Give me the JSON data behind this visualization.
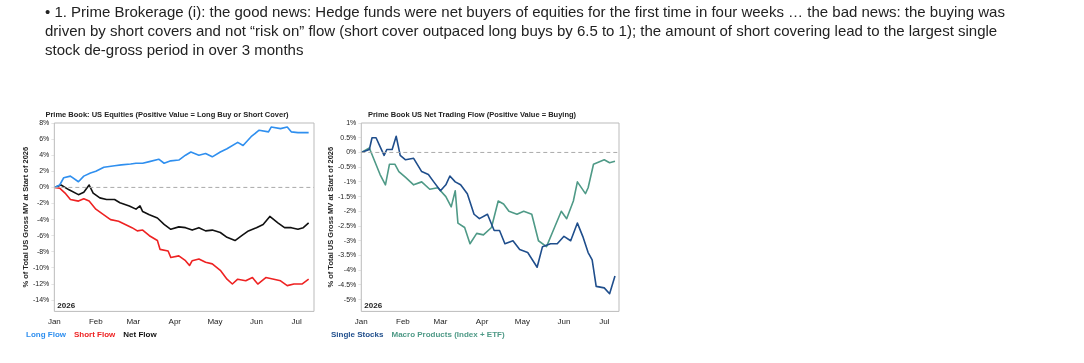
{
  "chart_data": [
    {
      "type": "line",
      "title": "Prime Book: US Equities (Positive Value = Long Buy or Short Cover)",
      "ylabel": "% of Total US Gross MV at Start of 2026",
      "annotations": [
        "• 1. Prime Brokerage (i): the good news: Hedge funds were net buyers of equities for the first time in four weeks … the bad news: the buying was driven by short covers and not “risk on” flow (short cover outpaced long buys by 6.5 to 1); the amount of short covering lead to the largest single stock de-gross period in over 3 months",
        "2026"
      ],
      "xlim": [
        "2026-01-01",
        "2026-07-14"
      ],
      "xticks": [
        {
          "value": "2026-01-01",
          "label": "Jan"
        },
        {
          "value": "2026-02-01",
          "label": "Feb"
        },
        {
          "value": "2026-03-01",
          "label": "Mar"
        },
        {
          "value": "2026-04-01",
          "label": "Apr"
        },
        {
          "value": "2026-05-01",
          "label": "May"
        },
        {
          "value": "2026-06-01",
          "label": "Jun"
        },
        {
          "value": "2026-07-01",
          "label": "Jul"
        }
      ],
      "ylim": [
        -15.4,
        8
      ],
      "yticks": [
        {
          "value": 8,
          "label": "8%"
        },
        {
          "value": 6,
          "label": "6%"
        },
        {
          "value": 4,
          "label": "4%"
        },
        {
          "value": 2,
          "label": "2%"
        },
        {
          "value": 0,
          "label": "0%"
        },
        {
          "value": -2,
          "label": "-2%"
        },
        {
          "value": -4,
          "label": "-4%"
        },
        {
          "value": -6,
          "label": "-6%"
        },
        {
          "value": -8,
          "label": "-8%"
        },
        {
          "value": -10,
          "label": "-10%"
        },
        {
          "value": -12,
          "label": "-12%"
        },
        {
          "value": -14,
          "label": "-14%"
        }
      ],
      "grid": false,
      "legend": "bottom left",
      "marker": "none",
      "line_style": "solid",
      "ref_lines": [
        {
          "axis": "y",
          "value": 0,
          "label": null,
          "color": "#aaaaaa",
          "line_style": "dashed"
        }
      ],
      "series": [
        {
          "name": "Long Flow",
          "color": "#2f8fef",
          "x": [
            "2026-01-01",
            "2026-01-05",
            "2026-01-08",
            "2026-01-13",
            "2026-01-19",
            "2026-01-23",
            "2026-01-28",
            "2026-02-01",
            "2026-02-07",
            "2026-02-15",
            "2026-02-20",
            "2026-02-27",
            "2026-03-03",
            "2026-03-08",
            "2026-03-13",
            "2026-03-20",
            "2026-03-24",
            "2026-03-29",
            "2026-04-04",
            "2026-04-09",
            "2026-04-13",
            "2026-04-19",
            "2026-04-24",
            "2026-04-29",
            "2026-05-05",
            "2026-05-10",
            "2026-05-18",
            "2026-05-22",
            "2026-05-28",
            "2026-06-03",
            "2026-06-10",
            "2026-06-12",
            "2026-06-19",
            "2026-06-24",
            "2026-06-27",
            "2026-07-02",
            "2026-07-10"
          ],
          "values": [
            0,
            0.3,
            1.2,
            1.4,
            0.7,
            1.4,
            1.8,
            2.0,
            2.5,
            2.7,
            2.8,
            2.9,
            3.0,
            3.0,
            3.2,
            3.5,
            3.0,
            3.3,
            3.4,
            4.0,
            4.4,
            4.0,
            4.2,
            3.8,
            4.4,
            4.8,
            5.6,
            5.2,
            6.3,
            7.1,
            6.9,
            7.5,
            7.3,
            7.5,
            6.9,
            6.8,
            6.8
          ]
        },
        {
          "name": "Short Flow",
          "color": "#ee2222",
          "x": [
            "2026-01-01",
            "2026-01-05",
            "2026-01-09",
            "2026-01-13",
            "2026-01-19",
            "2026-01-23",
            "2026-01-27",
            "2026-02-01",
            "2026-02-07",
            "2026-02-12",
            "2026-02-18",
            "2026-02-23",
            "2026-02-28",
            "2026-03-04",
            "2026-03-08",
            "2026-03-13",
            "2026-03-19",
            "2026-03-21",
            "2026-03-27",
            "2026-03-29",
            "2026-04-04",
            "2026-04-09",
            "2026-04-12",
            "2026-04-14",
            "2026-04-19",
            "2026-04-24",
            "2026-04-29",
            "2026-05-05",
            "2026-05-10",
            "2026-05-14",
            "2026-05-18",
            "2026-05-24",
            "2026-05-29",
            "2026-06-02",
            "2026-06-08",
            "2026-06-14",
            "2026-06-19",
            "2026-06-24",
            "2026-06-29",
            "2026-07-05",
            "2026-07-10"
          ],
          "values": [
            0,
            -0.1,
            -0.7,
            -1.5,
            -1.7,
            -1.4,
            -1.7,
            -2.7,
            -3.4,
            -4.0,
            -4.2,
            -4.6,
            -5.0,
            -5.4,
            -5.3,
            -6.0,
            -6.6,
            -7.7,
            -7.9,
            -8.7,
            -8.5,
            -9.1,
            -9.7,
            -9.1,
            -8.9,
            -9.3,
            -9.5,
            -10.3,
            -11.4,
            -12.0,
            -11.4,
            -11.6,
            -11.2,
            -12.0,
            -11.2,
            -11.4,
            -11.6,
            -12.2,
            -12.0,
            -12.0,
            -11.4
          ]
        },
        {
          "name": "Net Flow",
          "color": "#111111",
          "x": [
            "2026-01-01",
            "2026-01-06",
            "2026-01-12",
            "2026-01-19",
            "2026-01-23",
            "2026-01-27",
            "2026-01-30",
            "2026-02-04",
            "2026-02-09",
            "2026-02-15",
            "2026-02-19",
            "2026-02-26",
            "2026-03-03",
            "2026-03-06",
            "2026-03-08",
            "2026-03-13",
            "2026-03-19",
            "2026-03-24",
            "2026-03-29",
            "2026-04-04",
            "2026-04-09",
            "2026-04-14",
            "2026-04-19",
            "2026-04-24",
            "2026-04-29",
            "2026-05-05",
            "2026-05-10",
            "2026-05-16",
            "2026-05-21",
            "2026-05-26",
            "2026-06-01",
            "2026-06-06",
            "2026-06-11",
            "2026-06-17",
            "2026-06-22",
            "2026-06-27",
            "2026-07-02",
            "2026-07-06",
            "2026-07-10"
          ],
          "values": [
            0,
            0.3,
            -0.3,
            -0.9,
            -0.6,
            0.3,
            -0.7,
            -1.3,
            -1.5,
            -1.5,
            -1.9,
            -2.3,
            -2.7,
            -2.3,
            -3.0,
            -3.4,
            -3.8,
            -4.6,
            -5.2,
            -4.9,
            -5.0,
            -5.3,
            -5.0,
            -5.4,
            -5.3,
            -5.6,
            -6.2,
            -6.6,
            -6.0,
            -5.4,
            -5.0,
            -4.6,
            -3.6,
            -4.4,
            -5.0,
            -5.0,
            -5.2,
            -5.0,
            -4.4
          ]
        }
      ]
    },
    {
      "type": "line",
      "title": "Prime Book US Net Trading Flow (Positive Value = Buying)",
      "ylabel": "% of Total US Gross MV at Start of 2026",
      "annotations": [
        "2026"
      ],
      "xlim": [
        "2026-01-01",
        "2026-07-12"
      ],
      "xticks": [
        {
          "value": "2026-01-01",
          "label": "Jan"
        },
        {
          "value": "2026-02-01",
          "label": "Feb"
        },
        {
          "value": "2026-03-01",
          "label": "Mar"
        },
        {
          "value": "2026-04-01",
          "label": "Apr"
        },
        {
          "value": "2026-05-01",
          "label": "May"
        },
        {
          "value": "2026-06-01",
          "label": "Jun"
        },
        {
          "value": "2026-07-01",
          "label": "Jul"
        }
      ],
      "ylim": [
        -5.4,
        1
      ],
      "yticks": [
        {
          "value": 1,
          "label": "1%"
        },
        {
          "value": 0.5,
          "label": "0.5%"
        },
        {
          "value": 0,
          "label": "0%"
        },
        {
          "value": -0.5,
          "label": "-0.5%"
        },
        {
          "value": -1,
          "label": "-1%"
        },
        {
          "value": -1.5,
          "label": "-1.5%"
        },
        {
          "value": -2,
          "label": "-2%"
        },
        {
          "value": -2.5,
          "label": "-2.5%"
        },
        {
          "value": -3,
          "label": "-3%"
        },
        {
          "value": -3.5,
          "label": "-3.5%"
        },
        {
          "value": -4,
          "label": "-4%"
        },
        {
          "value": -4.5,
          "label": "-4.5%"
        },
        {
          "value": -5,
          "label": "-5%"
        }
      ],
      "grid": false,
      "legend": "bottom left",
      "marker": "none",
      "line_style": "solid",
      "ref_lines": [
        {
          "axis": "y",
          "value": 0,
          "label": null,
          "color": "#aaaaaa",
          "line_style": "dashed"
        }
      ],
      "series": [
        {
          "name": "Single Stocks",
          "color": "#1f4e8c",
          "x": [
            "2026-01-01",
            "2026-01-07",
            "2026-01-09",
            "2026-01-12",
            "2026-01-15",
            "2026-01-18",
            "2026-01-20",
            "2026-01-24",
            "2026-01-27",
            "2026-01-30",
            "2026-02-03",
            "2026-02-09",
            "2026-02-15",
            "2026-02-20",
            "2026-02-24",
            "2026-03-01",
            "2026-03-05",
            "2026-03-08",
            "2026-03-12",
            "2026-03-16",
            "2026-03-21",
            "2026-03-26",
            "2026-03-30",
            "2026-04-05",
            "2026-04-10",
            "2026-04-14",
            "2026-04-18",
            "2026-04-24",
            "2026-04-29",
            "2026-05-05",
            "2026-05-12",
            "2026-05-16",
            "2026-05-22",
            "2026-05-27",
            "2026-06-01",
            "2026-06-06",
            "2026-06-11",
            "2026-06-15",
            "2026-06-19",
            "2026-06-22",
            "2026-06-25",
            "2026-07-01",
            "2026-07-05",
            "2026-07-09"
          ],
          "values": [
            0,
            0.1,
            0.5,
            0.5,
            0.2,
            -0.1,
            0.1,
            0.1,
            0.55,
            -0.1,
            -0.25,
            -0.2,
            -0.65,
            -0.75,
            -1.0,
            -1.3,
            -1.1,
            -0.8,
            -1.0,
            -1.1,
            -1.4,
            -2.1,
            -2.25,
            -2.1,
            -2.65,
            -2.65,
            -3.1,
            -3.0,
            -3.3,
            -3.4,
            -3.9,
            -3.2,
            -3.1,
            -3.1,
            -2.85,
            -3.0,
            -2.4,
            -2.85,
            -3.4,
            -3.65,
            -4.55,
            -4.6,
            -4.8,
            -4.2
          ]
        },
        {
          "name": "Macro Products (Index + ETF)",
          "color": "#4f9a87",
          "x": [
            "2026-01-01",
            "2026-01-07",
            "2026-01-11",
            "2026-01-15",
            "2026-01-19",
            "2026-01-22",
            "2026-01-26",
            "2026-01-29",
            "2026-02-03",
            "2026-02-09",
            "2026-02-15",
            "2026-02-21",
            "2026-02-27",
            "2026-03-05",
            "2026-03-09",
            "2026-03-12",
            "2026-03-14",
            "2026-03-19",
            "2026-03-23",
            "2026-03-28",
            "2026-04-02",
            "2026-04-08",
            "2026-04-13",
            "2026-04-17",
            "2026-04-21",
            "2026-04-27",
            "2026-05-02",
            "2026-05-08",
            "2026-05-13",
            "2026-05-19",
            "2026-05-24",
            "2026-05-30",
            "2026-06-03",
            "2026-06-08",
            "2026-06-11",
            "2026-06-17",
            "2026-06-19",
            "2026-06-23",
            "2026-07-01",
            "2026-07-05",
            "2026-07-09"
          ],
          "values": [
            0,
            0.15,
            -0.3,
            -0.75,
            -1.1,
            -0.4,
            -0.4,
            -0.65,
            -0.85,
            -1.1,
            -1.0,
            -1.25,
            -1.2,
            -1.5,
            -1.85,
            -1.3,
            -2.4,
            -2.55,
            -3.1,
            -2.75,
            -2.8,
            -2.55,
            -1.65,
            -1.75,
            -2.0,
            -2.1,
            -2.0,
            -2.1,
            -3.0,
            -3.2,
            -2.65,
            -2.0,
            -2.25,
            -1.65,
            -1.0,
            -1.4,
            -1.2,
            -0.4,
            -0.25,
            -0.35,
            -0.3
          ]
        }
      ]
    }
  ]
}
